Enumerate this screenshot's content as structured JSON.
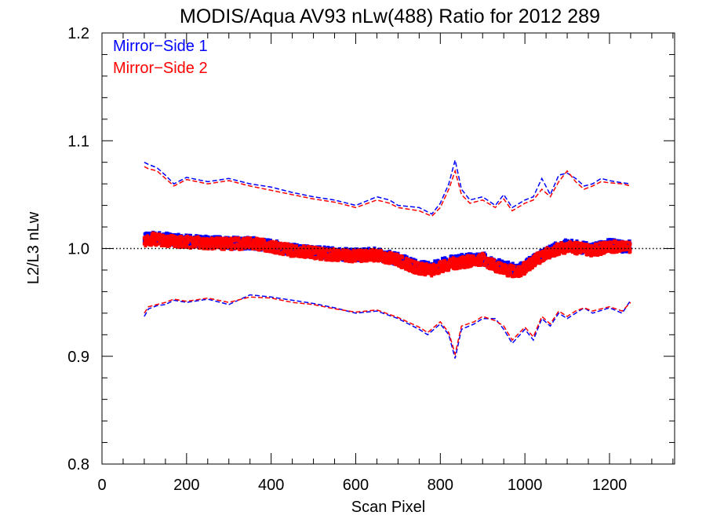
{
  "chart_data": {
    "type": "scatter",
    "title": "MODIS/Aqua AV93 nLw(488) Ratio for 2012 289",
    "xlabel": "Scan Pixel",
    "ylabel": "L2/L3 nLw",
    "xlim": [
      0,
      1354
    ],
    "ylim": [
      0.8,
      1.2
    ],
    "xticks": [
      0,
      200,
      400,
      600,
      800,
      1000,
      1200
    ],
    "yticks": [
      0.8,
      0.9,
      1.0,
      1.1,
      1.2
    ],
    "xtick_labels": [
      "0",
      "200",
      "400",
      "600",
      "800",
      "1000",
      "1200"
    ],
    "ytick_labels": [
      "0.8",
      "0.9",
      "1.0",
      "1.1",
      "1.2"
    ],
    "reference_line": 1.0,
    "grid": false,
    "legend": {
      "position": "top-left"
    },
    "series": [
      {
        "name": "Mirror−Side 1",
        "color": "#0000ff",
        "mean_x": [
          100,
          120,
          150,
          200,
          250,
          300,
          350,
          400,
          450,
          500,
          550,
          600,
          650,
          700,
          750,
          780,
          800,
          830,
          850,
          880,
          900,
          930,
          960,
          980,
          1000,
          1020,
          1050,
          1080,
          1100,
          1130,
          1160,
          1200,
          1230,
          1250
        ],
        "mean_y": [
          1.008,
          1.011,
          1.009,
          1.007,
          1.006,
          1.005,
          1.005,
          1.003,
          0.999,
          0.997,
          0.995,
          0.994,
          0.995,
          0.99,
          0.983,
          0.982,
          0.985,
          0.988,
          0.989,
          0.99,
          0.991,
          0.985,
          0.982,
          0.98,
          0.983,
          0.99,
          0.996,
          1.001,
          1.003,
          1.001,
          0.999,
          1.003,
          1.002,
          1.002
        ],
        "upper_x": [
          100,
          110,
          130,
          150,
          170,
          200,
          250,
          300,
          350,
          400,
          450,
          500,
          550,
          600,
          650,
          680,
          700,
          750,
          780,
          800,
          820,
          835,
          850,
          870,
          900,
          930,
          950,
          970,
          1000,
          1020,
          1040,
          1060,
          1080,
          1100,
          1120,
          1140,
          1160,
          1180,
          1200,
          1230,
          1250
        ],
        "upper_y": [
          1.08,
          1.078,
          1.075,
          1.068,
          1.06,
          1.066,
          1.062,
          1.065,
          1.06,
          1.057,
          1.052,
          1.048,
          1.045,
          1.04,
          1.048,
          1.045,
          1.04,
          1.038,
          1.032,
          1.042,
          1.06,
          1.082,
          1.055,
          1.045,
          1.048,
          1.04,
          1.05,
          1.038,
          1.045,
          1.048,
          1.065,
          1.05,
          1.068,
          1.07,
          1.065,
          1.058,
          1.06,
          1.065,
          1.063,
          1.061,
          1.06
        ],
        "lower_x": [
          100,
          110,
          130,
          150,
          170,
          200,
          250,
          300,
          350,
          400,
          450,
          500,
          550,
          600,
          650,
          700,
          750,
          770,
          800,
          820,
          835,
          850,
          880,
          900,
          930,
          950,
          970,
          1000,
          1020,
          1040,
          1060,
          1080,
          1100,
          1120,
          1140,
          1160,
          1200,
          1230,
          1250
        ],
        "lower_y": [
          0.937,
          0.944,
          0.947,
          0.948,
          0.952,
          0.95,
          0.953,
          0.948,
          0.957,
          0.955,
          0.952,
          0.949,
          0.945,
          0.94,
          0.942,
          0.935,
          0.925,
          0.92,
          0.93,
          0.92,
          0.898,
          0.925,
          0.93,
          0.935,
          0.935,
          0.925,
          0.912,
          0.925,
          0.915,
          0.935,
          0.928,
          0.94,
          0.935,
          0.94,
          0.945,
          0.94,
          0.945,
          0.94,
          0.952
        ]
      },
      {
        "name": "Mirror−Side 2",
        "color": "#ff0000",
        "mean_x": [
          100,
          120,
          150,
          200,
          250,
          300,
          350,
          400,
          450,
          500,
          550,
          600,
          650,
          700,
          750,
          780,
          800,
          830,
          850,
          880,
          900,
          930,
          960,
          980,
          1000,
          1020,
          1050,
          1080,
          1100,
          1130,
          1160,
          1200,
          1230,
          1250
        ],
        "mean_y": [
          1.006,
          1.009,
          1.007,
          1.006,
          1.005,
          1.004,
          1.005,
          1.002,
          0.998,
          0.996,
          0.994,
          0.993,
          0.994,
          0.989,
          0.981,
          0.98,
          0.983,
          0.986,
          0.987,
          0.989,
          0.99,
          0.984,
          0.98,
          0.978,
          0.982,
          0.988,
          0.995,
          1.0,
          1.001,
          1.0,
          0.998,
          1.002,
          1.001,
          1.001
        ],
        "upper_x": [
          100,
          110,
          130,
          150,
          170,
          200,
          250,
          300,
          350,
          400,
          450,
          500,
          550,
          600,
          650,
          680,
          700,
          750,
          780,
          800,
          820,
          835,
          850,
          870,
          900,
          930,
          950,
          970,
          1000,
          1020,
          1040,
          1060,
          1080,
          1100,
          1120,
          1140,
          1160,
          1180,
          1200,
          1230,
          1250
        ],
        "upper_y": [
          1.076,
          1.074,
          1.072,
          1.065,
          1.058,
          1.064,
          1.06,
          1.063,
          1.058,
          1.054,
          1.05,
          1.046,
          1.043,
          1.038,
          1.045,
          1.042,
          1.038,
          1.035,
          1.03,
          1.038,
          1.055,
          1.072,
          1.05,
          1.042,
          1.045,
          1.038,
          1.046,
          1.035,
          1.042,
          1.045,
          1.055,
          1.048,
          1.062,
          1.072,
          1.062,
          1.055,
          1.058,
          1.062,
          1.061,
          1.06,
          1.058
        ],
        "lower_x": [
          100,
          110,
          130,
          150,
          170,
          200,
          250,
          300,
          350,
          400,
          450,
          500,
          550,
          600,
          650,
          700,
          750,
          770,
          800,
          820,
          835,
          850,
          880,
          900,
          930,
          950,
          970,
          1000,
          1020,
          1040,
          1060,
          1080,
          1100,
          1120,
          1140,
          1160,
          1200,
          1230,
          1250
        ],
        "lower_y": [
          0.94,
          0.946,
          0.948,
          0.95,
          0.953,
          0.951,
          0.954,
          0.95,
          0.955,
          0.954,
          0.95,
          0.948,
          0.944,
          0.941,
          0.943,
          0.936,
          0.927,
          0.922,
          0.932,
          0.922,
          0.902,
          0.928,
          0.932,
          0.937,
          0.933,
          0.928,
          0.915,
          0.927,
          0.918,
          0.937,
          0.93,
          0.942,
          0.937,
          0.942,
          0.945,
          0.942,
          0.946,
          0.942,
          0.95
        ]
      }
    ]
  }
}
